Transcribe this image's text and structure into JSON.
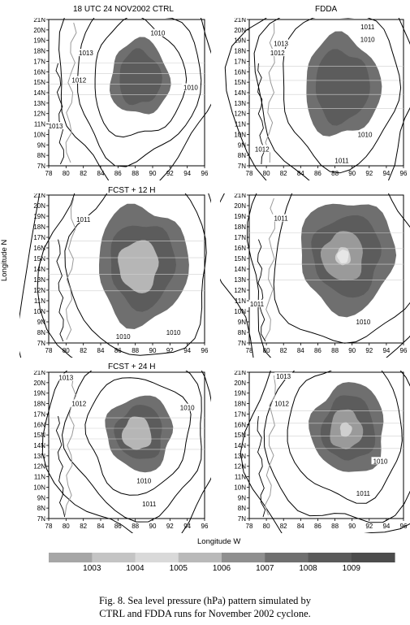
{
  "figure": {
    "y_axis_label": "Longitude N",
    "x_axis_label": "Longitude W",
    "caption_line1": "Fig. 8. Sea level pressure (hPa) pattern simulated by",
    "caption_line2": "CTRL and FDDA runs for November 2002 cyclone."
  },
  "chart_data": [
    {
      "type": "contour",
      "title": "18 UTC  24 NOV2002 CTRL",
      "xticks": [
        "78",
        "80",
        "82",
        "84",
        "86",
        "88",
        "90",
        "92",
        "94",
        "96"
      ],
      "yticks": [
        "7N",
        "8N",
        "9N",
        "10N",
        "11N",
        "12N",
        "13N",
        "14N",
        "15N",
        "16N",
        "17N",
        "18N",
        "19N",
        "20N",
        "21N"
      ],
      "xlim": [
        78,
        96
      ],
      "ylim": [
        7,
        21
      ],
      "isobars": [
        {
          "value": 1010,
          "label": "1010",
          "lx": 90.6,
          "ly": 19.7
        },
        {
          "value": 1010,
          "label": "1010",
          "lx": 94.4,
          "ly": 14.5
        },
        {
          "value": 1012,
          "label": "1012",
          "lx": 81.5,
          "ly": 15.2
        },
        {
          "value": 1013,
          "label": "1013",
          "lx": 82.3,
          "ly": 17.8
        },
        {
          "value": 1013,
          "label": "1013",
          "lx": 78.8,
          "ly": 10.8
        }
      ],
      "shaded_core": {
        "center": [
          88.5,
          15.4
        ],
        "rx": 3.4,
        "ry": 3.6,
        "max_level": "1007"
      }
    },
    {
      "type": "contour",
      "title": "FDDA",
      "xticks": [
        "78",
        "80",
        "82",
        "84",
        "86",
        "88",
        "90",
        "92",
        "94",
        "96"
      ],
      "yticks": [
        "7N",
        "8N",
        "9N",
        "10N",
        "11N",
        "12N",
        "13N",
        "14N",
        "15N",
        "16N",
        "17N",
        "18N",
        "19N",
        "20N",
        "21N"
      ],
      "xlim": [
        78,
        96
      ],
      "ylim": [
        7,
        21
      ],
      "isobars": [
        {
          "value": 1011,
          "label": "1011",
          "lx": 91.8,
          "ly": 20.3
        },
        {
          "value": 1010,
          "label": "1010",
          "lx": 91.8,
          "ly": 19.1
        },
        {
          "value": 1013,
          "label": "1013",
          "lx": 81.7,
          "ly": 18.7
        },
        {
          "value": 1012,
          "label": "1012",
          "lx": 81.3,
          "ly": 17.8
        },
        {
          "value": 1010,
          "label": "1010",
          "lx": 91.5,
          "ly": 10.0
        },
        {
          "value": 1011,
          "label": "1011",
          "lx": 88.8,
          "ly": 7.5
        },
        {
          "value": 1012,
          "label": "1012",
          "lx": 79.5,
          "ly": 8.6
        }
      ],
      "shaded_core": {
        "center": [
          88.8,
          14.6
        ],
        "rx": 4.4,
        "ry": 4.8,
        "max_level": "1008"
      }
    },
    {
      "type": "contour",
      "title": "FCST + 12 H",
      "xticks": [
        "78",
        "80",
        "82",
        "84",
        "86",
        "88",
        "90",
        "92",
        "94",
        "96"
      ],
      "yticks": [
        "7N",
        "8N",
        "9N",
        "10N",
        "11N",
        "12N",
        "13N",
        "14N",
        "15N",
        "16N",
        "17N",
        "18N",
        "19N",
        "20N",
        "21N"
      ],
      "xlim": [
        78,
        96
      ],
      "ylim": [
        7,
        21
      ],
      "isobars": [
        {
          "value": 1011,
          "label": "1011",
          "lx": 82.0,
          "ly": 18.7
        },
        {
          "value": 1010,
          "label": "1010",
          "lx": 86.6,
          "ly": 7.6
        },
        {
          "value": 1010,
          "label": "1010",
          "lx": 92.4,
          "ly": 8.0
        }
      ],
      "shaded_core": {
        "center": [
          88.8,
          14.4
        ],
        "rx": 5.2,
        "ry": 5.6,
        "max_level": "1005"
      }
    },
    {
      "type": "contour",
      "title": "",
      "xticks": [
        "78",
        "80",
        "82",
        "84",
        "86",
        "88",
        "90",
        "92",
        "94",
        "96"
      ],
      "yticks": [
        "7N",
        "8N",
        "9N",
        "10N",
        "11N",
        "12N",
        "13N",
        "14N",
        "15N",
        "16N",
        "17N",
        "18N",
        "19N",
        "20N",
        "21N"
      ],
      "xlim": [
        78,
        96
      ],
      "ylim": [
        7,
        21
      ],
      "isobars": [
        {
          "value": 1011,
          "label": "1011",
          "lx": 81.7,
          "ly": 18.8
        },
        {
          "value": 1011,
          "label": "1011",
          "lx": 78.9,
          "ly": 10.7
        },
        {
          "value": 1010,
          "label": "1010",
          "lx": 91.3,
          "ly": 9.0
        }
      ],
      "shaded_core": {
        "center": [
          89.4,
          15.3
        ],
        "rx": 5.5,
        "ry": 5.3,
        "max_level": "1003"
      }
    },
    {
      "type": "contour",
      "title": "FCST + 24 H",
      "xticks": [
        "78",
        "80",
        "82",
        "84",
        "86",
        "88",
        "90",
        "92",
        "94",
        "96"
      ],
      "yticks": [
        "7N",
        "8N",
        "9N",
        "10N",
        "11N",
        "12N",
        "13N",
        "14N",
        "15N",
        "16N",
        "17N",
        "18N",
        "19N",
        "20N",
        "21N"
      ],
      "xlim": [
        78,
        96
      ],
      "ylim": [
        7,
        21
      ],
      "isobars": [
        {
          "value": 1013,
          "label": "1013",
          "lx": 80.0,
          "ly": 20.5
        },
        {
          "value": 1012,
          "label": "1012",
          "lx": 81.5,
          "ly": 18.0
        },
        {
          "value": 1010,
          "label": "1010",
          "lx": 94.0,
          "ly": 17.6
        },
        {
          "value": 1010,
          "label": "1010",
          "lx": 89.0,
          "ly": 10.6
        },
        {
          "value": 1011,
          "label": "1011",
          "lx": 89.6,
          "ly": 8.4
        }
      ],
      "shaded_core": {
        "center": [
          88.5,
          15.2
        ],
        "rx": 3.8,
        "ry": 3.6,
        "max_level": "1005"
      }
    },
    {
      "type": "contour",
      "title": "",
      "xticks": [
        "78",
        "80",
        "82",
        "84",
        "86",
        "88",
        "90",
        "92",
        "94",
        "96"
      ],
      "yticks": [
        "7N",
        "8N",
        "9N",
        "10N",
        "11N",
        "12N",
        "13N",
        "14N",
        "15N",
        "16N",
        "17N",
        "18N",
        "19N",
        "20N",
        "21N"
      ],
      "xlim": [
        78,
        96
      ],
      "ylim": [
        7,
        21
      ],
      "isobars": [
        {
          "value": 1013,
          "label": "1013",
          "lx": 82.0,
          "ly": 20.6
        },
        {
          "value": 1012,
          "label": "1012",
          "lx": 81.8,
          "ly": 18.0
        },
        {
          "value": 1010,
          "label": "1010",
          "lx": 93.3,
          "ly": 12.5
        },
        {
          "value": 1011,
          "label": "1011",
          "lx": 91.3,
          "ly": 9.4
        }
      ],
      "shaded_core": {
        "center": [
          89.6,
          15.6
        ],
        "rx": 4.3,
        "ry": 4.3,
        "max_level": "1004"
      }
    },
    {
      "type": "colorbar",
      "labels": [
        "1003",
        "1004",
        "1005",
        "1006",
        "1007",
        "1008",
        "1009"
      ],
      "colors": [
        "#a6a6a6",
        "#c4c4c4",
        "#d9d9d9",
        "#b9b9b9",
        "#8f8f8f",
        "#6f6f6f",
        "#5a5a5a",
        "#4c4c4c"
      ]
    }
  ]
}
